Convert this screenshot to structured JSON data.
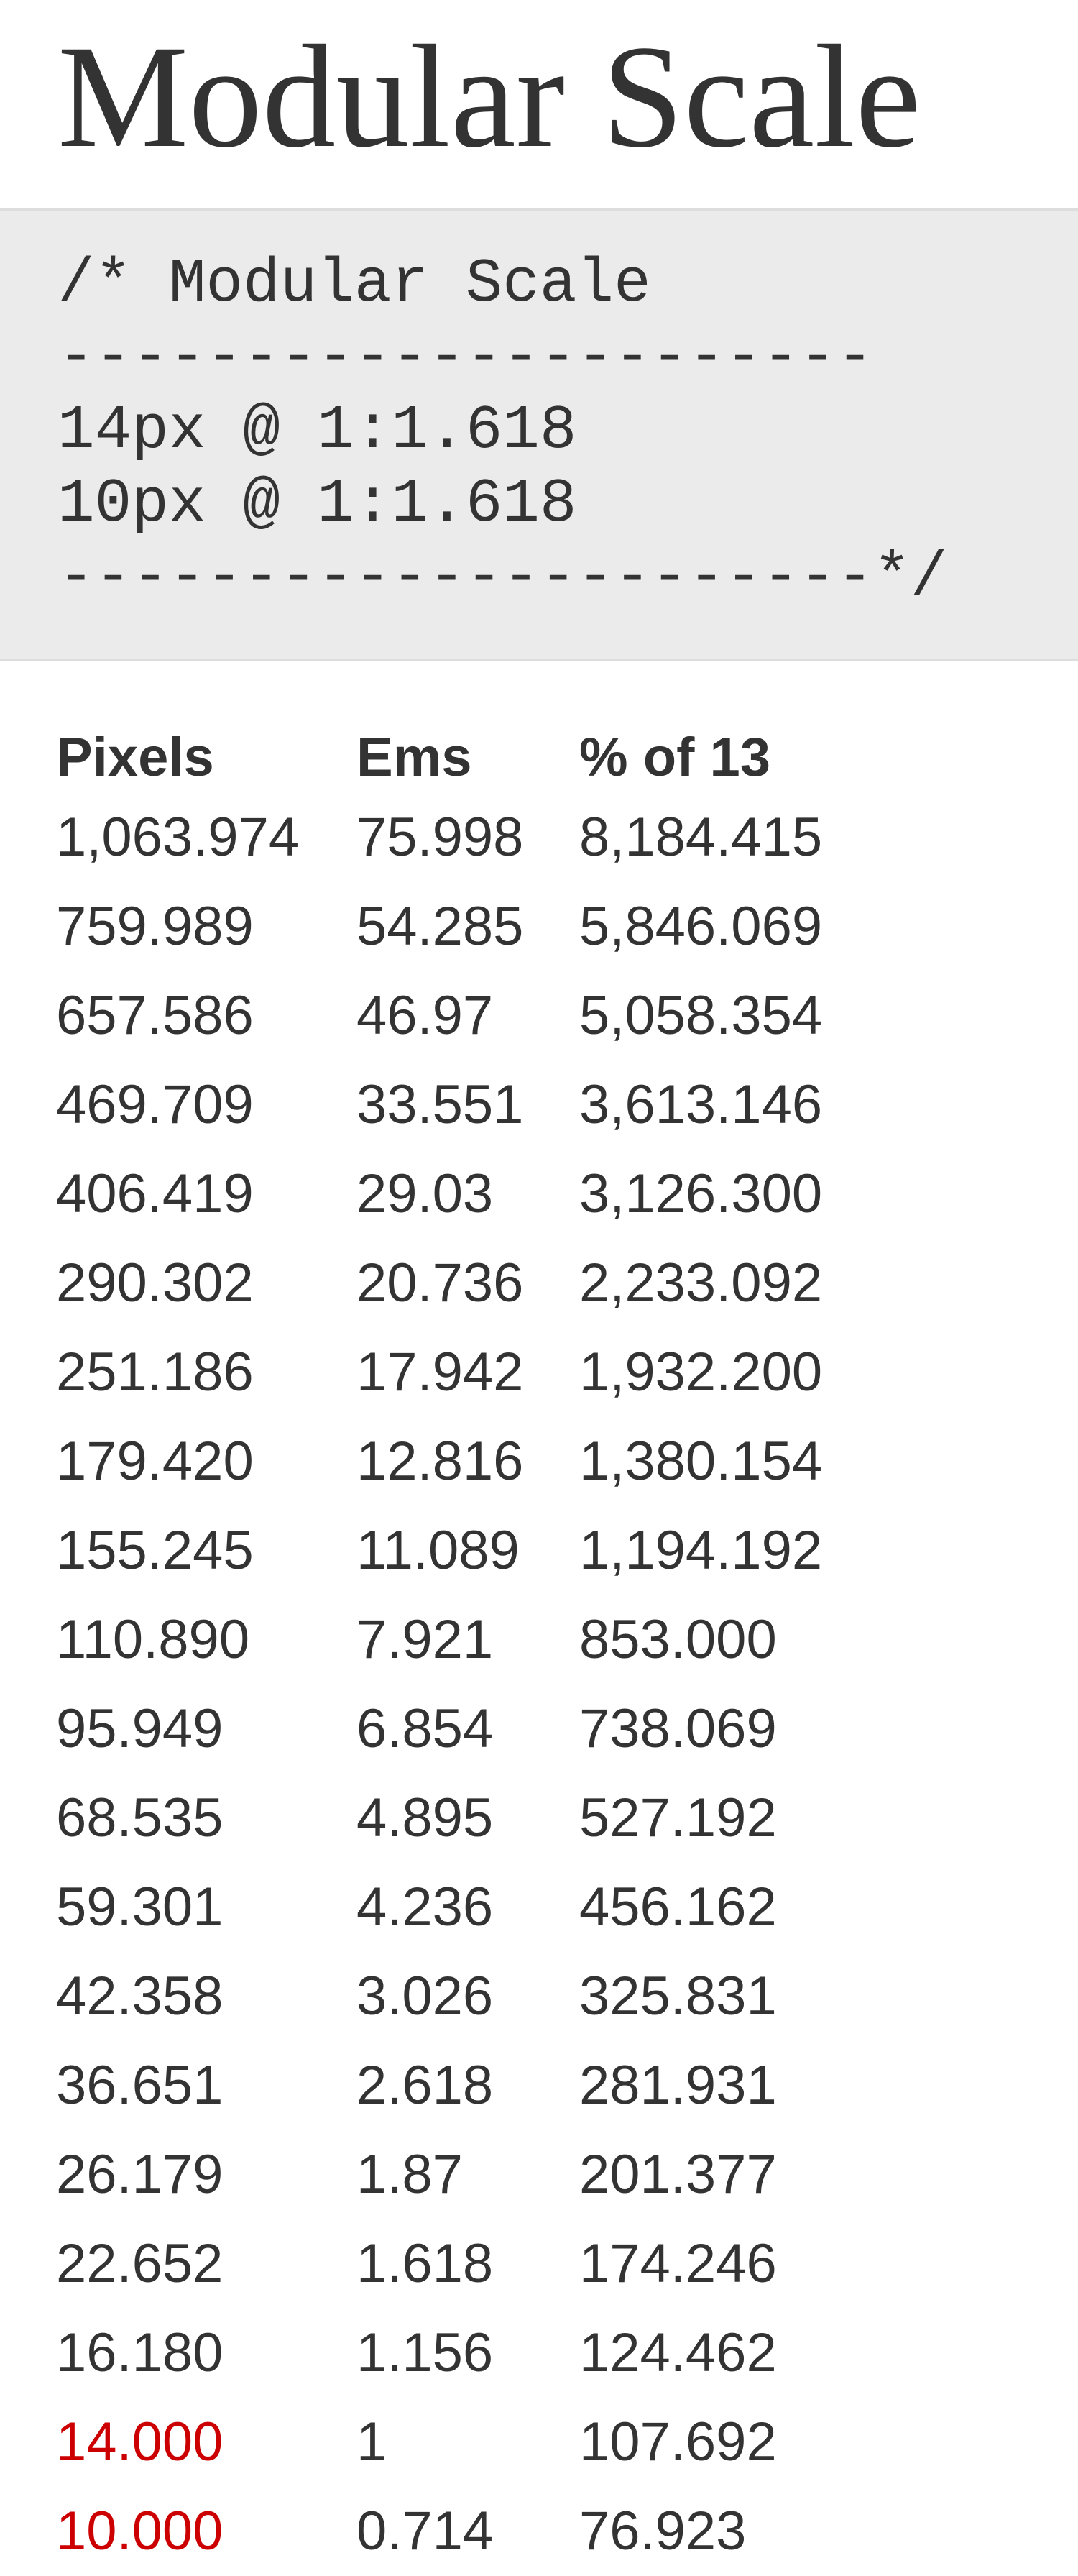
{
  "page": {
    "title": "Modular Scale"
  },
  "code_block": {
    "lines": [
      "/* Modular Scale",
      "----------------------",
      "14px @ 1:1.618",
      "10px @ 1:1.618",
      "----------------------*/"
    ]
  },
  "table": {
    "headers": [
      "Pixels",
      "Ems",
      "% of 13"
    ],
    "rows": [
      {
        "pixels": "1,063.974",
        "ems": "75.998",
        "percent": "8,184.415",
        "base": false
      },
      {
        "pixels": "759.989",
        "ems": "54.285",
        "percent": "5,846.069",
        "base": false
      },
      {
        "pixels": "657.586",
        "ems": "46.97",
        "percent": "5,058.354",
        "base": false
      },
      {
        "pixels": "469.709",
        "ems": "33.551",
        "percent": "3,613.146",
        "base": false
      },
      {
        "pixels": "406.419",
        "ems": "29.03",
        "percent": "3,126.300",
        "base": false
      },
      {
        "pixels": "290.302",
        "ems": "20.736",
        "percent": "2,233.092",
        "base": false
      },
      {
        "pixels": "251.186",
        "ems": "17.942",
        "percent": "1,932.200",
        "base": false
      },
      {
        "pixels": "179.420",
        "ems": "12.816",
        "percent": "1,380.154",
        "base": false
      },
      {
        "pixels": "155.245",
        "ems": "11.089",
        "percent": "1,194.192",
        "base": false
      },
      {
        "pixels": "110.890",
        "ems": "7.921",
        "percent": "853.000",
        "base": false
      },
      {
        "pixels": "95.949",
        "ems": "6.854",
        "percent": "738.069",
        "base": false
      },
      {
        "pixels": "68.535",
        "ems": "4.895",
        "percent": "527.192",
        "base": false
      },
      {
        "pixels": "59.301",
        "ems": "4.236",
        "percent": "456.162",
        "base": false
      },
      {
        "pixels": "42.358",
        "ems": "3.026",
        "percent": "325.831",
        "base": false
      },
      {
        "pixels": "36.651",
        "ems": "2.618",
        "percent": "281.931",
        "base": false
      },
      {
        "pixels": "26.179",
        "ems": "1.87",
        "percent": "201.377",
        "base": false
      },
      {
        "pixels": "22.652",
        "ems": "1.618",
        "percent": "174.246",
        "base": false
      },
      {
        "pixels": "16.180",
        "ems": "1.156",
        "percent": "124.462",
        "base": false
      },
      {
        "pixels": "14.000",
        "ems": "1",
        "percent": "107.692",
        "base": true
      },
      {
        "pixels": "10.000",
        "ems": "0.714",
        "percent": "76.923",
        "base": true
      }
    ]
  },
  "colors": {
    "text": "#333333",
    "code_background": "#ebebeb",
    "base_highlight": "#cc0000"
  }
}
